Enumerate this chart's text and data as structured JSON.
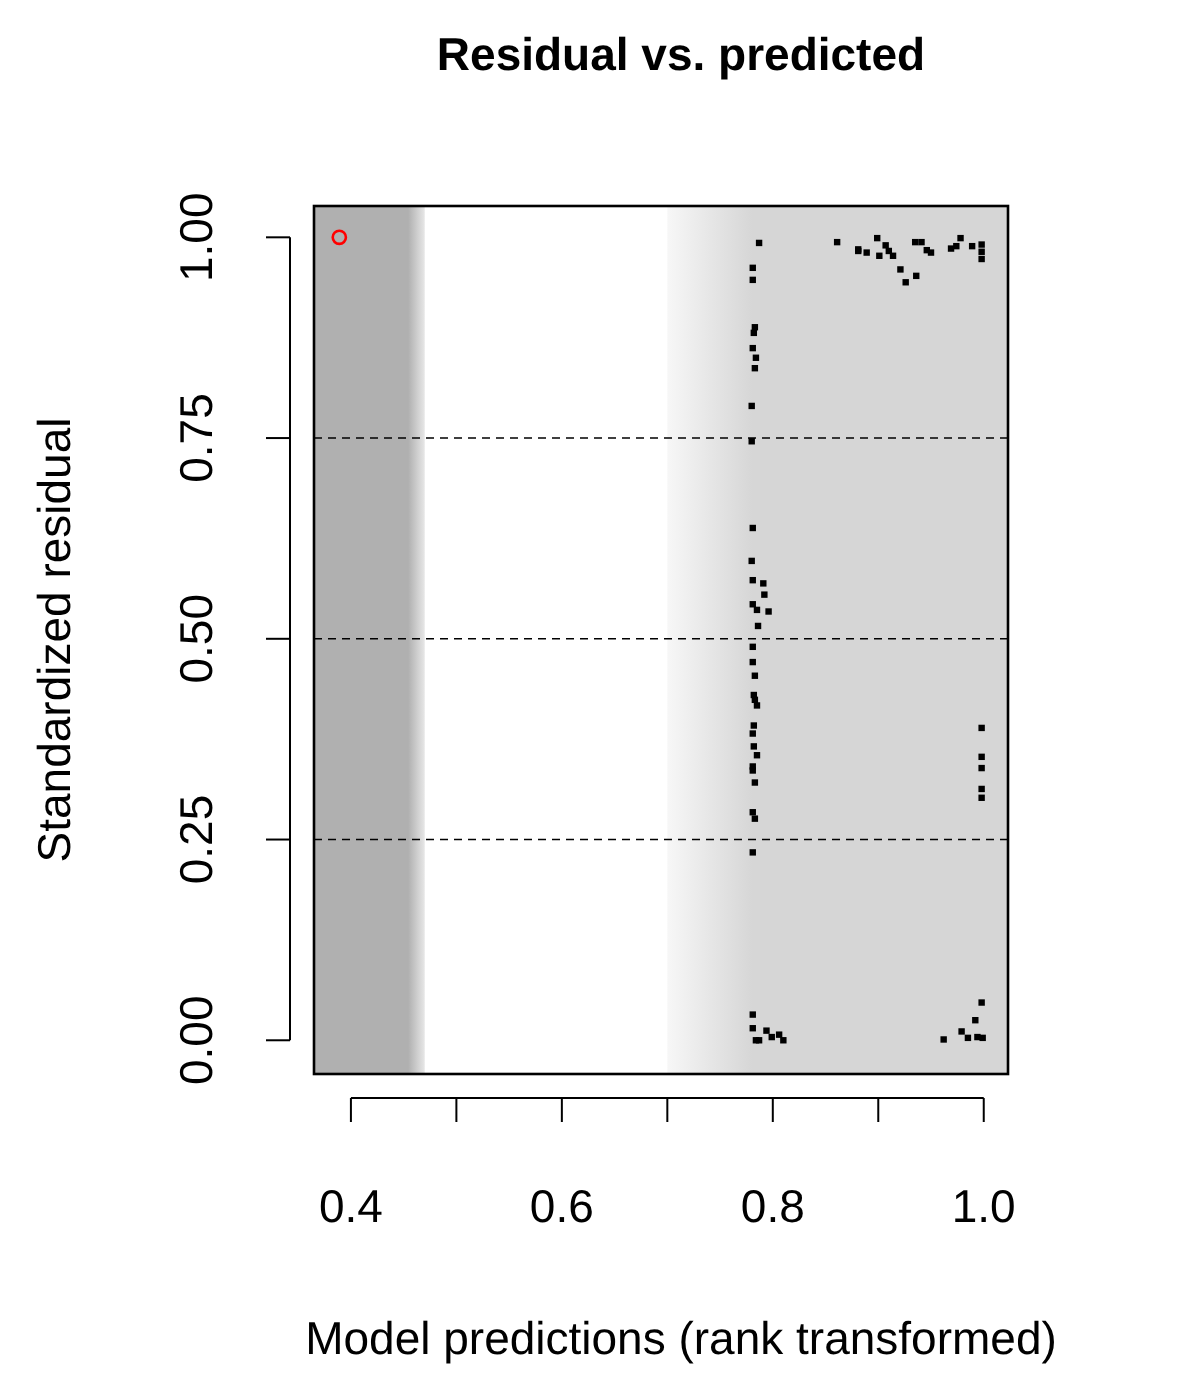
{
  "chart_data": {
    "type": "scatter",
    "title": "Residual vs. predicted",
    "xlabel": "Model predictions (rank transformed)",
    "ylabel": "Standardized residual",
    "xlim": [
      0.365,
      1.023
    ],
    "ylim": [
      -0.042,
      1.039
    ],
    "xticks": [
      {
        "value": 0.4,
        "label": "0.4"
      },
      {
        "value": 0.5,
        "label": null
      },
      {
        "value": 0.6,
        "label": "0.6"
      },
      {
        "value": 0.7,
        "label": null
      },
      {
        "value": 0.8,
        "label": "0.8"
      },
      {
        "value": 0.9,
        "label": null
      },
      {
        "value": 1.0,
        "label": "1.0"
      }
    ],
    "yticks": [
      {
        "value": 0,
        "label": "0.00"
      },
      {
        "value": 0.25,
        "label": "0.25"
      },
      {
        "value": 0.5,
        "label": "0.50"
      },
      {
        "value": 0.75,
        "label": "0.75"
      },
      {
        "value": 1,
        "label": "1.00"
      }
    ],
    "ref_lines": [
      {
        "axis": "y",
        "value": 0.25,
        "line_style": "dashed"
      },
      {
        "axis": "y",
        "value": 0.5,
        "line_style": "dashed"
      },
      {
        "axis": "y",
        "value": 0.75,
        "line_style": "dashed"
      }
    ],
    "bands": [
      {
        "axis": "x",
        "from": 0.365,
        "to": 0.47,
        "color": "#b0b0b0"
      },
      {
        "axis": "x",
        "from": 0.7,
        "to": 1.023,
        "color": "#d6d6d6"
      }
    ],
    "grid": false,
    "series": [
      {
        "color": "#000000",
        "marker": "square",
        "x": [
          0.787,
          0.781,
          0.781,
          0.783,
          0.782,
          0.781,
          0.784,
          0.783,
          0.78,
          0.78,
          0.781,
          0.861,
          0.881,
          0.881,
          0.889,
          0.899,
          0.907,
          0.91,
          0.901,
          0.914,
          0.921,
          0.926,
          0.936,
          0.935,
          0.941,
          0.946,
          0.95,
          0.969,
          0.974,
          0.978,
          0.989,
          0.998,
          0.998,
          0.998,
          0.78,
          0.781,
          0.791,
          0.792,
          0.781,
          0.785,
          0.796,
          0.786,
          0.781,
          0.781,
          0.783,
          0.782,
          0.783,
          0.785,
          0.782,
          0.781,
          0.782,
          0.785,
          0.781,
          0.781,
          0.783,
          0.781,
          0.783,
          0.781,
          0.998,
          0.998,
          0.998,
          0.998,
          0.998,
          0.781,
          0.781,
          0.784,
          0.787,
          0.794,
          0.799,
          0.806,
          0.81,
          0.962,
          0.979,
          0.985,
          0.992,
          0.994,
          0.999,
          0.998
        ],
        "values": [
          0.993,
          0.962,
          0.947,
          0.888,
          0.881,
          0.862,
          0.85,
          0.837,
          0.79,
          0.746,
          0.638,
          0.994,
          0.985,
          0.983,
          0.981,
          0.999,
          0.99,
          0.983,
          0.977,
          0.977,
          0.96,
          0.944,
          0.952,
          0.994,
          0.994,
          0.984,
          0.981,
          0.986,
          0.989,
          0.999,
          0.989,
          0.991,
          0.982,
          0.973,
          0.597,
          0.573,
          0.569,
          0.555,
          0.543,
          0.536,
          0.534,
          0.516,
          0.49,
          0.471,
          0.454,
          0.43,
          0.424,
          0.417,
          0.392,
          0.382,
          0.366,
          0.355,
          0.341,
          0.336,
          0.321,
          0.284,
          0.276,
          0.234,
          0.389,
          0.353,
          0.339,
          0.313,
          0.302,
          0.032,
          0.015,
          0.0,
          0.0,
          0.012,
          0.004,
          0.007,
          0.0,
          0.001,
          0.011,
          0.003,
          0.025,
          0.004,
          0.003,
          0.047
        ]
      },
      {
        "color": "#ff0000",
        "marker": "circle",
        "x": [
          0.389
        ],
        "values": [
          1.0
        ]
      }
    ]
  }
}
